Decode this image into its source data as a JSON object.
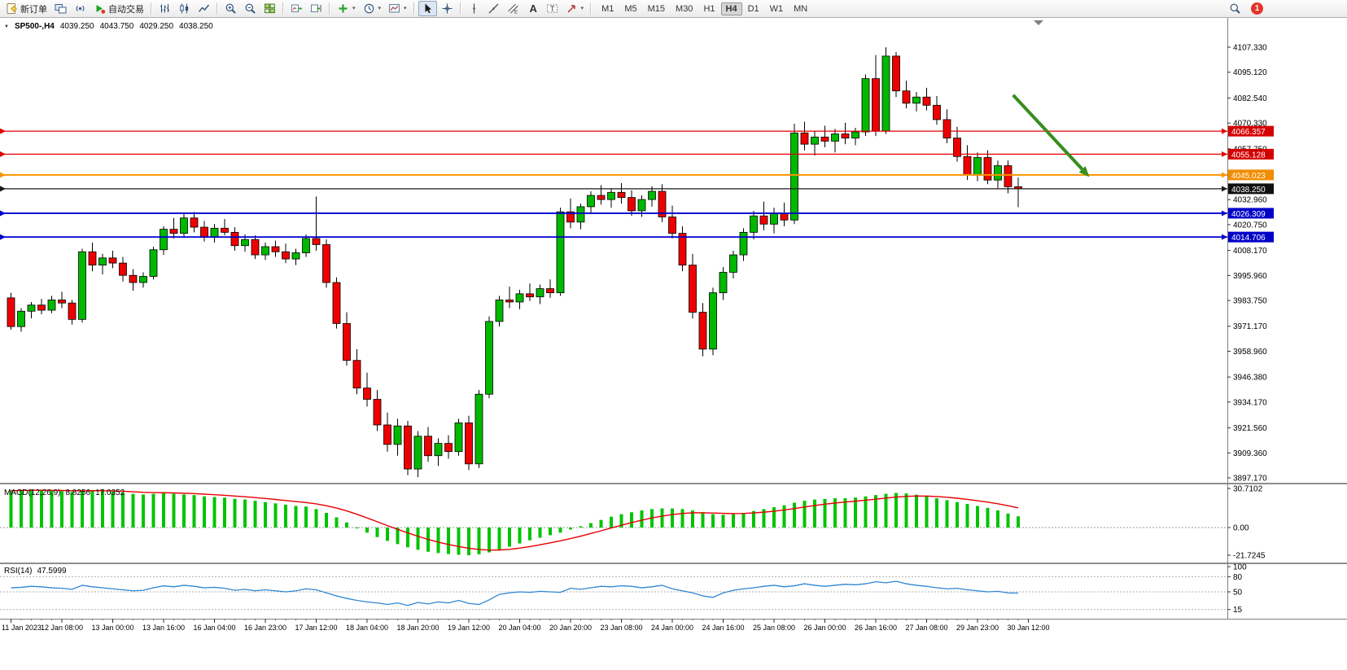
{
  "toolbar": {
    "new_order_label": "新订单",
    "autotrading_label": "自动交易",
    "timeframes": [
      "M1",
      "M5",
      "M15",
      "M30",
      "H1",
      "H4",
      "D1",
      "W1",
      "MN"
    ],
    "active_timeframe": "H4",
    "notification_count": "1",
    "caret_glyph": "▾",
    "icon_names": [
      "new-order-icon",
      "chart-window-icon",
      "broadcast-icon",
      "autotrading-play-icon",
      "bars-chart-icon",
      "candlestick-chart-icon",
      "line-chart-icon",
      "zoom-in-icon",
      "zoom-out-icon",
      "tile-windows-icon",
      "auto-scroll-icon",
      "chart-shift-icon",
      "add-indicator-icon",
      "periods-clock-icon",
      "templates-icon",
      "cursor-icon",
      "crosshair-icon",
      "vertical-line-icon",
      "trendline-icon",
      "channel-icon",
      "text-icon",
      "label-icon",
      "arrows-icon",
      "search-icon"
    ]
  },
  "chart": {
    "marker_glyph": "▼",
    "symbol_period": "SP500-,H4",
    "open": "4039.250",
    "high": "4043.750",
    "low": "4029.250",
    "close": "4038.250"
  },
  "chart_data": {
    "type": "candlestick",
    "symbol": "SP500-",
    "period": "H4",
    "colors": {
      "up": "#00b800",
      "down": "#ee0000",
      "outline": "#000000"
    },
    "candles": [
      [
        3985,
        3987.5,
        3969.5,
        3971
      ],
      [
        3971,
        3980,
        3968.5,
        3978.5
      ],
      [
        3978.5,
        3983,
        3975,
        3981.5
      ],
      [
        3981.5,
        3984.5,
        3977,
        3979
      ],
      [
        3979,
        3986,
        3977.5,
        3984
      ],
      [
        3984,
        3988,
        3980,
        3982.5
      ],
      [
        3982.5,
        3984,
        3972,
        3974.5
      ],
      [
        3974.5,
        4009,
        3973,
        4007.5
      ],
      [
        4007.5,
        4012,
        3998,
        4001
      ],
      [
        4001,
        4006.5,
        3996.5,
        4004.5
      ],
      [
        4004.5,
        4008,
        3999.5,
        4002
      ],
      [
        4002,
        4005,
        3993,
        3996
      ],
      [
        3996,
        3999,
        3988.5,
        3992.5
      ],
      [
        3992.5,
        3997.5,
        3990,
        3995.5
      ],
      [
        3995.5,
        4010,
        3994,
        4008.5
      ],
      [
        4008.5,
        4020,
        4006,
        4018.5
      ],
      [
        4018.5,
        4024,
        4014,
        4016.5
      ],
      [
        4016.5,
        4026.5,
        4015,
        4024
      ],
      [
        4024,
        4027,
        4017,
        4019.5
      ],
      [
        4019.5,
        4022.5,
        4012.5,
        4014.5
      ],
      [
        4014.5,
        4021,
        4012,
        4019
      ],
      [
        4019,
        4023.5,
        4015.5,
        4017
      ],
      [
        4017,
        4019.5,
        4008,
        4010.5
      ],
      [
        4010.5,
        4016,
        4007.5,
        4013.5
      ],
      [
        4013.5,
        4015.5,
        4004,
        4006
      ],
      [
        4006,
        4012,
        4003.5,
        4010
      ],
      [
        4010,
        4013,
        4005,
        4007.5
      ],
      [
        4007.5,
        4011.5,
        4002,
        4004
      ],
      [
        4004,
        4009,
        4001,
        4007
      ],
      [
        4007,
        4016,
        4005,
        4014
      ],
      [
        4014,
        4034.5,
        4008,
        4011
      ],
      [
        4011,
        4013.5,
        3990,
        3992.5
      ],
      [
        3992.5,
        3995,
        3970,
        3972.5
      ],
      [
        3972.5,
        3978,
        3952,
        3954.5
      ],
      [
        3954.5,
        3960,
        3938,
        3941
      ],
      [
        3941,
        3948.5,
        3932,
        3935.5
      ],
      [
        3935.5,
        3940,
        3920,
        3923
      ],
      [
        3923,
        3929,
        3910,
        3913.5
      ],
      [
        3913.5,
        3926,
        3908,
        3922.5
      ],
      [
        3922.5,
        3925,
        3898.5,
        3901.5
      ],
      [
        3901.5,
        3920,
        3897.5,
        3917.5
      ],
      [
        3917.5,
        3922,
        3905,
        3908
      ],
      [
        3908,
        3916.5,
        3903,
        3914
      ],
      [
        3914,
        3918,
        3906.5,
        3910
      ],
      [
        3910,
        3926,
        3908,
        3924
      ],
      [
        3924,
        3927.5,
        3901,
        3904
      ],
      [
        3904,
        3940,
        3902,
        3938
      ],
      [
        3938,
        3976,
        3936,
        3973.5
      ],
      [
        3973.5,
        3986,
        3971,
        3984
      ],
      [
        3984,
        3990.5,
        3980,
        3983
      ],
      [
        3983,
        3989,
        3979.5,
        3987
      ],
      [
        3987,
        3992,
        3983.5,
        3985.5
      ],
      [
        3985.5,
        3991.5,
        3982,
        3989.5
      ],
      [
        3989.5,
        3994,
        3985,
        3987.5
      ],
      [
        3987.5,
        4029,
        3986,
        4027
      ],
      [
        4027,
        4033.5,
        4019,
        4022
      ],
      [
        4022,
        4031,
        4018.5,
        4029.5
      ],
      [
        4029.5,
        4037,
        4026,
        4035
      ],
      [
        4035,
        4040,
        4030.5,
        4033
      ],
      [
        4033,
        4038.5,
        4029,
        4036.5
      ],
      [
        4036.5,
        4041,
        4031,
        4034
      ],
      [
        4034,
        4037.5,
        4025,
        4027.5
      ],
      [
        4027.5,
        4035,
        4024.5,
        4033
      ],
      [
        4033,
        4039.5,
        4029.5,
        4037
      ],
      [
        4037,
        4040.5,
        4022,
        4024.5
      ],
      [
        4024.5,
        4030,
        4014,
        4016.5
      ],
      [
        4016.5,
        4020,
        3998,
        4001
      ],
      [
        4001,
        4006.5,
        3975,
        3978
      ],
      [
        3978,
        3982.5,
        3956.5,
        3960
      ],
      [
        3960,
        3990,
        3957,
        3987.5
      ],
      [
        3987.5,
        4000,
        3984,
        3997.5
      ],
      [
        3997.5,
        4008,
        3994.5,
        4006
      ],
      [
        4006,
        4019,
        4003,
        4017
      ],
      [
        4017,
        4027.5,
        4013.5,
        4025
      ],
      [
        4025,
        4032,
        4018,
        4021
      ],
      [
        4021,
        4029,
        4016.5,
        4026.5
      ],
      [
        4026.5,
        4031.5,
        4020,
        4023
      ],
      [
        4023,
        4070,
        4021,
        4065.5
      ],
      [
        4065.5,
        4071,
        4057,
        4060
      ],
      [
        4060,
        4066.5,
        4054.5,
        4063.5
      ],
      [
        4063.5,
        4069,
        4058.5,
        4061.5
      ],
      [
        4061.5,
        4067.5,
        4056,
        4065
      ],
      [
        4065,
        4070.5,
        4060,
        4063
      ],
      [
        4063,
        4068,
        4059.5,
        4066
      ],
      [
        4066,
        4094,
        4064,
        4092
      ],
      [
        4092,
        4103.5,
        4064,
        4066.5
      ],
      [
        4066.5,
        4107.3,
        4065,
        4103
      ],
      [
        4103,
        4105,
        4083,
        4086
      ],
      [
        4086,
        4091,
        4077.5,
        4080
      ],
      [
        4080,
        4085.5,
        4076,
        4083
      ],
      [
        4083,
        4087.5,
        4076.5,
        4079
      ],
      [
        4079,
        4083.5,
        4069.5,
        4072
      ],
      [
        4072,
        4077,
        4060.5,
        4063
      ],
      [
        4063,
        4068.5,
        4051.5,
        4054
      ],
      [
        4054,
        4059.5,
        4042.5,
        4045
      ],
      [
        4045,
        4056,
        4042,
        4053.5
      ],
      [
        4053.5,
        4057,
        4040.5,
        4042.5
      ],
      [
        4042.5,
        4052,
        4038.5,
        4049.5
      ],
      [
        4049.5,
        4052,
        4036,
        4039.25
      ],
      [
        4039.25,
        4043.75,
        4029.25,
        4038.25
      ]
    ],
    "hlines": [
      {
        "price": 4066.357,
        "label": "4066.357",
        "color": "#e60000",
        "badge": "#d40000",
        "width": 1.2
      },
      {
        "price": 4055.128,
        "label": "4055.128",
        "color": "#e60000",
        "badge": "#d40000",
        "width": 1.2
      },
      {
        "price": 4045.023,
        "label": "4045.023",
        "color": "#ff9400",
        "badge": "#f28c00",
        "width": 2
      },
      {
        "price": 4038.25,
        "label": "4038.250",
        "color": "#1a1a1a",
        "badge": "#111111",
        "width": 1.2
      },
      {
        "price": 4026.309,
        "label": "4026.309",
        "color": "#0000d0",
        "badge": "#0000c8",
        "width": 1.8
      },
      {
        "price": 4014.706,
        "label": "4014.706",
        "color": "#0000d0",
        "badge": "#0000c8",
        "width": 1.8
      }
    ],
    "price_ticks": [
      "4107.330",
      "4095.120",
      "4082.540",
      "4070.330",
      "4057.750",
      "4032.960",
      "4020.750",
      "4008.170",
      "3995.960",
      "3983.750",
      "3971.170",
      "3958.960",
      "3946.380",
      "3934.170",
      "3921.560",
      "3909.360",
      "3897.170"
    ],
    "time_labels": [
      "11 Jan 2023",
      "12 Jan 08:00",
      "13 Jan 00:00",
      "13 Jan 16:00",
      "16 Jan 04:00",
      "16 Jan 23:00",
      "17 Jan 12:00",
      "18 Jan 04:00",
      "18 Jan 20:00",
      "19 Jan 12:00",
      "20 Jan 04:00",
      "20 Jan 20:00",
      "23 Jan 08:00",
      "24 Jan 00:00",
      "24 Jan 16:00",
      "25 Jan 08:00",
      "26 Jan 00:00",
      "26 Jan 16:00",
      "27 Jan 08:00",
      "29 Jan 23:00",
      "30 Jan 12:00"
    ],
    "annotation_arrow": {
      "from_index": 98.5,
      "from_price": 4084,
      "to_index": 106,
      "to_price": 4044,
      "color": "#388e1e"
    },
    "macd": {
      "label": "MACD(12,26,9)",
      "value_main": "8.8256",
      "value_signal": "17.0352",
      "scale_ticks": [
        "30.7102",
        "0.00",
        "-21.7245"
      ],
      "scale_max": 30.7102,
      "scale_min": -21.7245,
      "histogram_color": "#00c400",
      "signal_color": "#e60000",
      "histogram": [
        29,
        29.5,
        30,
        29.5,
        29,
        28.5,
        28,
        28.5,
        29.5,
        29,
        28,
        27.5,
        26.5,
        26,
        26.5,
        27,
        26.5,
        26,
        25.5,
        24.5,
        24,
        23.5,
        22.5,
        22,
        21,
        20,
        19,
        18,
        17,
        16.5,
        14.5,
        11.5,
        8,
        4,
        0,
        -4,
        -7.5,
        -10.5,
        -13,
        -15.5,
        -17.5,
        -19,
        -20,
        -20.8,
        -21.4,
        -21.7,
        -21,
        -19.5,
        -17.5,
        -15,
        -12.5,
        -10,
        -8,
        -6,
        -4,
        -1.5,
        1,
        3.5,
        6,
        8.5,
        10.5,
        12,
        13.5,
        14.5,
        15,
        15,
        14.5,
        13.5,
        12,
        10.5,
        10,
        10.5,
        11.5,
        13,
        14.5,
        16,
        17.5,
        19.5,
        21,
        22,
        22.5,
        23,
        23,
        23.5,
        24.5,
        25.5,
        26.5,
        27.2,
        26.8,
        25.8,
        24.5,
        23,
        21.5,
        20,
        18.5,
        17,
        15.5,
        13.5,
        11,
        8.83
      ]
    },
    "rsi": {
      "label": "RSI(14)",
      "value": "47.5999",
      "line_color": "#2e86d3",
      "levels": [
        80,
        50,
        15
      ],
      "scale_ticks": [
        "100",
        "80",
        "50",
        "15"
      ],
      "values": [
        58,
        59,
        61,
        60,
        58,
        57,
        55,
        63,
        60,
        58,
        56,
        54,
        52,
        53,
        58,
        62,
        60,
        63,
        61,
        58,
        59,
        57,
        53,
        55,
        52,
        54,
        52,
        50,
        52,
        56,
        54,
        48,
        42,
        37,
        33,
        30,
        28,
        25,
        28,
        23,
        29,
        26,
        30,
        28,
        33,
        27,
        25,
        34,
        45,
        48,
        50,
        49,
        51,
        50,
        49,
        57,
        55,
        58,
        61,
        60,
        62,
        61,
        58,
        60,
        63,
        56,
        52,
        48,
        42,
        39,
        48,
        53,
        56,
        58,
        61,
        63,
        60,
        62,
        66,
        63,
        61,
        63,
        65,
        64,
        66,
        70,
        68,
        71,
        66,
        63,
        61,
        58,
        56,
        57,
        54,
        52,
        50,
        51,
        48,
        47.6
      ]
    }
  }
}
